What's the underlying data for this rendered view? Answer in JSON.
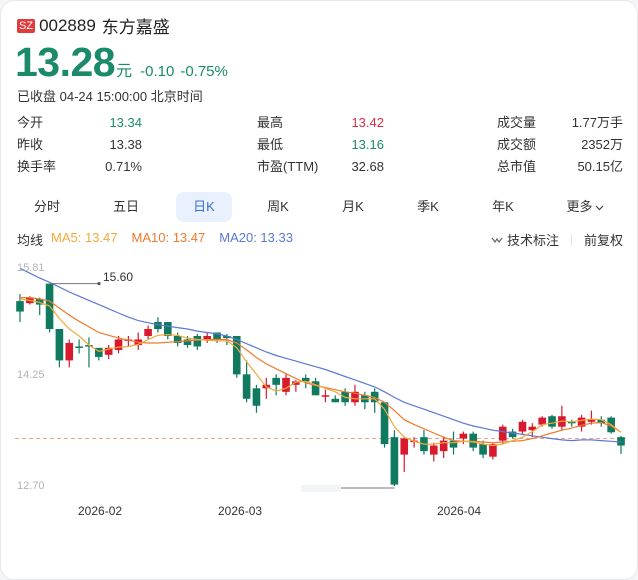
{
  "header": {
    "market_badge": "SZ",
    "code": "002889",
    "name": "东方嘉盛",
    "price": "13.28",
    "unit": "元",
    "change": "-0.10",
    "change_pct": "-0.75%",
    "status": "已收盘 04-24 15:00:00 北京时间"
  },
  "stats": [
    {
      "label": "今开",
      "value": "13.34",
      "color": "#1a8a6a"
    },
    {
      "label": "最高",
      "value": "13.42",
      "color": "#d8304a"
    },
    {
      "label": "成交量",
      "value": "1.77万手",
      "color": "#333333"
    },
    {
      "label": "昨收",
      "value": "13.38",
      "color": "#333333"
    },
    {
      "label": "最低",
      "value": "13.16",
      "color": "#1a8a6a"
    },
    {
      "label": "成交额",
      "value": "2352万",
      "color": "#333333"
    },
    {
      "label": "换手率",
      "value": "0.71%",
      "color": "#333333"
    },
    {
      "label": "市盈(TTM)",
      "value": "32.68",
      "color": "#333333"
    },
    {
      "label": "总市值",
      "value": "50.15亿",
      "color": "#333333"
    }
  ],
  "tabs": [
    {
      "label": "分时",
      "active": false
    },
    {
      "label": "五日",
      "active": false
    },
    {
      "label": "日K",
      "active": true
    },
    {
      "label": "周K",
      "active": false
    },
    {
      "label": "月K",
      "active": false
    },
    {
      "label": "季K",
      "active": false
    },
    {
      "label": "年K",
      "active": false
    },
    {
      "label": "更多",
      "active": false
    }
  ],
  "ma": {
    "label": "均线",
    "ma5": "MA5: 13.47",
    "ma10": "MA10: 13.47",
    "ma20": "MA20: 13.33"
  },
  "tools": {
    "tech_label": "技术标注",
    "adjust_label": "前复权"
  },
  "colors": {
    "up": "#d8192e",
    "down": "#0f7a5f",
    "ma5": "#f3a93a",
    "ma10": "#ef7a2e",
    "ma20": "#5b78d6",
    "accent": "#3a6fd8"
  },
  "chart_data": {
    "type": "candlestick",
    "title": "",
    "y_ticks": [
      "15.81",
      "14.25",
      "12.70"
    ],
    "ylim": [
      12.7,
      15.81
    ],
    "x_ticks": [
      "2026-02",
      "2026-03",
      "2026-04"
    ],
    "high_marker": "15.60",
    "prev_close_line": 13.38,
    "legend": [
      "MA5: 13.47",
      "MA10: 13.47",
      "MA20: 13.33"
    ],
    "candles": [
      [
        15.35,
        15.2,
        15.45,
        15.05
      ],
      [
        15.32,
        15.4,
        15.42,
        15.3
      ],
      [
        15.38,
        15.3,
        15.4,
        15.15
      ],
      [
        15.6,
        14.95,
        15.6,
        14.9
      ],
      [
        14.95,
        14.5,
        14.95,
        14.4
      ],
      [
        14.5,
        14.75,
        14.8,
        14.4
      ],
      [
        14.7,
        14.68,
        14.8,
        14.6
      ],
      [
        14.72,
        14.7,
        14.83,
        14.4
      ],
      [
        14.68,
        14.55,
        14.65,
        14.5
      ],
      [
        14.58,
        14.68,
        14.72,
        14.52
      ],
      [
        14.65,
        14.8,
        14.85,
        14.6
      ],
      [
        14.8,
        14.8,
        14.85,
        14.7
      ],
      [
        14.72,
        14.8,
        14.9,
        14.65
      ],
      [
        14.85,
        14.95,
        15.0,
        14.8
      ],
      [
        15.05,
        14.95,
        15.12,
        14.9
      ],
      [
        15.05,
        14.85,
        15.05,
        14.8
      ],
      [
        14.85,
        14.75,
        14.9,
        14.7
      ],
      [
        14.8,
        14.72,
        14.85,
        14.68
      ],
      [
        14.85,
        14.7,
        14.88,
        14.65
      ],
      [
        14.8,
        14.85,
        14.9,
        14.75
      ],
      [
        14.9,
        14.8,
        14.9,
        14.75
      ],
      [
        14.85,
        14.82,
        14.88,
        14.72
      ],
      [
        14.85,
        14.3,
        14.85,
        14.25
      ],
      [
        14.3,
        13.95,
        14.5,
        13.9
      ],
      [
        14.1,
        13.85,
        14.15,
        13.75
      ],
      [
        14.1,
        14.15,
        14.25,
        13.95
      ],
      [
        14.25,
        14.15,
        14.3,
        14.0
      ],
      [
        14.05,
        14.25,
        14.3,
        14.0
      ],
      [
        14.15,
        14.2,
        14.22,
        14.05
      ],
      [
        14.25,
        14.2,
        14.3,
        14.1
      ],
      [
        14.2,
        14.0,
        14.25,
        14.0
      ],
      [
        14.0,
        14.0,
        14.08,
        13.9
      ],
      [
        13.95,
        13.9,
        14.0,
        13.9
      ],
      [
        14.05,
        13.9,
        14.1,
        13.85
      ],
      [
        13.9,
        14.05,
        14.15,
        13.85
      ],
      [
        14.0,
        13.9,
        14.05,
        13.8
      ],
      [
        14.05,
        13.9,
        14.1,
        13.75
      ],
      [
        13.9,
        13.3,
        13.9,
        13.25
      ],
      [
        13.4,
        12.72,
        13.5,
        12.7
      ],
      [
        13.15,
        13.38,
        13.4,
        12.9
      ],
      [
        13.35,
        13.35,
        13.4,
        13.25
      ],
      [
        13.4,
        13.2,
        13.5,
        13.15
      ],
      [
        13.15,
        13.28,
        13.32,
        13.05
      ],
      [
        13.2,
        13.35,
        13.4,
        13.1
      ],
      [
        13.35,
        13.25,
        13.48,
        13.15
      ],
      [
        13.38,
        13.45,
        13.48,
        13.3
      ],
      [
        13.45,
        13.25,
        13.48,
        13.2
      ],
      [
        13.3,
        13.15,
        13.35,
        13.1
      ],
      [
        13.12,
        13.3,
        13.32,
        13.08
      ],
      [
        13.35,
        13.55,
        13.58,
        13.3
      ],
      [
        13.48,
        13.4,
        13.52,
        13.38
      ],
      [
        13.48,
        13.62,
        13.65,
        13.45
      ],
      [
        13.5,
        13.55,
        13.6,
        13.4
      ],
      [
        13.58,
        13.68,
        13.7,
        13.55
      ],
      [
        13.7,
        13.55,
        13.72,
        13.52
      ],
      [
        13.55,
        13.7,
        13.85,
        13.5
      ],
      [
        13.62,
        13.6,
        13.65,
        13.55
      ],
      [
        13.55,
        13.68,
        13.72,
        13.48
      ],
      [
        13.62,
        13.65,
        13.78,
        13.58
      ],
      [
        13.65,
        13.6,
        13.7,
        13.55
      ],
      [
        13.68,
        13.47,
        13.7,
        13.45
      ],
      [
        13.4,
        13.28,
        13.42,
        13.16
      ]
    ],
    "ma5": [
      15.38,
      15.36,
      15.33,
      15.28,
      15.1,
      14.95,
      14.85,
      14.72,
      14.63,
      14.66,
      14.69,
      14.7,
      14.73,
      14.8,
      14.86,
      14.87,
      14.86,
      14.82,
      14.8,
      14.79,
      14.78,
      14.78,
      14.68,
      14.48,
      14.3,
      14.12,
      14.06,
      14.1,
      14.19,
      14.2,
      14.15,
      14.1,
      14.05,
      13.97,
      13.95,
      13.95,
      13.95,
      13.8,
      13.55,
      13.4,
      13.34,
      13.3,
      13.3,
      13.32,
      13.32,
      13.34,
      13.33,
      13.3,
      13.28,
      13.3,
      13.35,
      13.4,
      13.48,
      13.58,
      13.6,
      13.63,
      13.62,
      13.64,
      13.66,
      13.65,
      13.58,
      13.47
    ],
    "ma10": [
      15.4,
      15.4,
      15.38,
      15.35,
      15.25,
      15.15,
      15.06,
      14.98,
      14.9,
      14.86,
      14.82,
      14.79,
      14.76,
      14.75,
      14.75,
      14.76,
      14.77,
      14.78,
      14.79,
      14.8,
      14.8,
      14.8,
      14.75,
      14.65,
      14.54,
      14.45,
      14.38,
      14.31,
      14.24,
      14.18,
      14.14,
      14.11,
      14.08,
      14.05,
      14.03,
      14.0,
      13.97,
      13.9,
      13.78,
      13.65,
      13.58,
      13.52,
      13.46,
      13.4,
      13.35,
      13.34,
      13.34,
      13.33,
      13.32,
      13.33,
      13.34,
      13.35,
      13.38,
      13.42,
      13.46,
      13.5,
      13.53,
      13.57,
      13.6,
      13.61,
      13.56,
      13.47
    ],
    "ma20": [
      15.82,
      15.75,
      15.68,
      15.62,
      15.55,
      15.48,
      15.42,
      15.36,
      15.3,
      15.24,
      15.18,
      15.12,
      15.07,
      15.04,
      15.01,
      14.99,
      14.97,
      14.95,
      14.92,
      14.9,
      14.88,
      14.85,
      14.8,
      14.74,
      14.68,
      14.62,
      14.57,
      14.53,
      14.49,
      14.45,
      14.41,
      14.37,
      14.32,
      14.27,
      14.22,
      14.17,
      14.12,
      14.05,
      13.97,
      13.9,
      13.85,
      13.8,
      13.75,
      13.7,
      13.65,
      13.6,
      13.56,
      13.53,
      13.5,
      13.48,
      13.46,
      13.44,
      13.42,
      13.4,
      13.38,
      13.36,
      13.35,
      13.36,
      13.36,
      13.35,
      13.34,
      13.33
    ]
  }
}
